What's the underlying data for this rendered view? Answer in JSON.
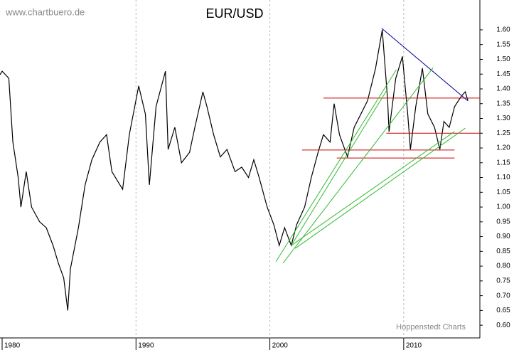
{
  "chart_data": {
    "type": "line",
    "title": "EUR/USD",
    "source": "www.chartbuero.de",
    "credit": "Hoppenstedt Charts",
    "color": "#000000",
    "x": [
      1979.84,
      1980.0,
      1980.5,
      1980.8,
      1981.2,
      1981.4,
      1981.8,
      1982.2,
      1982.8,
      1983.3,
      1983.8,
      1984.2,
      1984.6,
      1984.9,
      1985.1,
      1985.7,
      1986.2,
      1986.7,
      1987.3,
      1987.8,
      1988.2,
      1988.6,
      1989.0,
      1989.5,
      1990.2,
      1990.7,
      1991.0,
      1991.5,
      1992.2,
      1992.4,
      1992.9,
      1993.4,
      1994.0,
      1994.4,
      1995.0,
      1995.3,
      1995.8,
      1996.3,
      1996.8,
      1997.4,
      1997.9,
      1998.4,
      1998.8,
      1999.2,
      1999.8,
      2000.3,
      2000.7,
      2001.1,
      2001.6,
      2002.0,
      2002.6,
      2003.1,
      2003.6,
      2004.0,
      2004.5,
      2004.8,
      2005.2,
      2005.8,
      2006.3,
      2006.8,
      2007.3,
      2007.9,
      2008.4,
      2008.8,
      2008.9,
      2009.4,
      2009.9,
      2010.3,
      2010.5,
      2010.9,
      2011.4,
      2011.8,
      2012.3,
      2012.7,
      2013.0,
      2013.4,
      2013.8,
      2014.3,
      2014.6,
      2014.8
    ],
    "values": [
      1.448,
      1.46,
      1.436,
      1.22,
      1.1,
      1.0,
      1.12,
      1.0,
      0.95,
      0.93,
      0.87,
      0.81,
      0.76,
      0.65,
      0.79,
      0.93,
      1.075,
      1.16,
      1.22,
      1.245,
      1.12,
      1.09,
      1.06,
      1.245,
      1.41,
      1.315,
      1.075,
      1.34,
      1.46,
      1.195,
      1.27,
      1.15,
      1.185,
      1.27,
      1.39,
      1.34,
      1.245,
      1.17,
      1.195,
      1.12,
      1.135,
      1.1,
      1.16,
      1.1,
      1.0,
      0.94,
      0.87,
      0.93,
      0.87,
      0.94,
      1.0,
      1.1,
      1.185,
      1.245,
      1.22,
      1.35,
      1.245,
      1.17,
      1.27,
      1.315,
      1.36,
      1.47,
      1.6,
      1.36,
      1.255,
      1.435,
      1.51,
      1.315,
      1.195,
      1.34,
      1.47,
      1.315,
      1.27,
      1.195,
      1.29,
      1.27,
      1.34,
      1.375,
      1.39,
      1.36
    ],
    "trendlines": [
      {
        "color": "#cc0000",
        "x": [
          2004.0,
          2015.7
        ],
        "y": [
          1.369,
          1.369
        ]
      },
      {
        "color": "#cc0000",
        "x": [
          2008.7,
          2015.7
        ],
        "y": [
          1.25,
          1.25
        ]
      },
      {
        "color": "#cc0000",
        "x": [
          2002.4,
          2013.8
        ],
        "y": [
          1.193,
          1.193
        ]
      },
      {
        "color": "#cc0000",
        "x": [
          2005.0,
          2013.8
        ],
        "y": [
          1.166,
          1.166
        ]
      },
      {
        "color": "#000099",
        "x": [
          2008.36,
          2014.78
        ],
        "y": [
          1.605,
          1.36
        ]
      },
      {
        "color": "#33bb33",
        "x": [
          2000.45,
          2009.45
        ],
        "y": [
          0.815,
          1.465
        ]
      },
      {
        "color": "#33bb33",
        "x": [
          2000.98,
          2012.2
        ],
        "y": [
          0.81,
          1.472
        ]
      },
      {
        "color": "#33bb33",
        "x": [
          2001.6,
          2008.8
        ],
        "y": [
          0.87,
          1.4
        ]
      },
      {
        "color": "#33bb33",
        "x": [
          2001.6,
          2013.8
        ],
        "y": [
          0.87,
          1.256
        ]
      },
      {
        "color": "#33bb33",
        "x": [
          2001.9,
          2014.6
        ],
        "y": [
          0.86,
          1.267
        ]
      }
    ],
    "xlim": [
      1979.84,
      2015.69
    ],
    "xticks": [
      1980,
      1990,
      2000,
      2010
    ],
    "ylim": [
      0.557,
      1.701
    ],
    "yticks": [
      {
        "value": 0.6,
        "label": "0.60"
      },
      0.65,
      {
        "value": 0.7,
        "label": "0.70"
      },
      0.75,
      {
        "value": 0.8,
        "label": "0.80"
      },
      0.85,
      {
        "value": 0.9,
        "label": "0.90"
      },
      0.95,
      {
        "value": 1.0,
        "label": "1.00"
      },
      1.05,
      {
        "value": 1.1,
        "label": "1.10"
      },
      1.15,
      {
        "value": 1.2,
        "label": "1.20"
      },
      1.25,
      {
        "value": 1.3,
        "label": "1.30"
      },
      1.35,
      {
        "value": 1.4,
        "label": "1.40"
      },
      1.45,
      {
        "value": 1.5,
        "label": "1.50"
      },
      1.55,
      {
        "value": 1.6,
        "label": "1.60"
      }
    ],
    "grid": true
  }
}
